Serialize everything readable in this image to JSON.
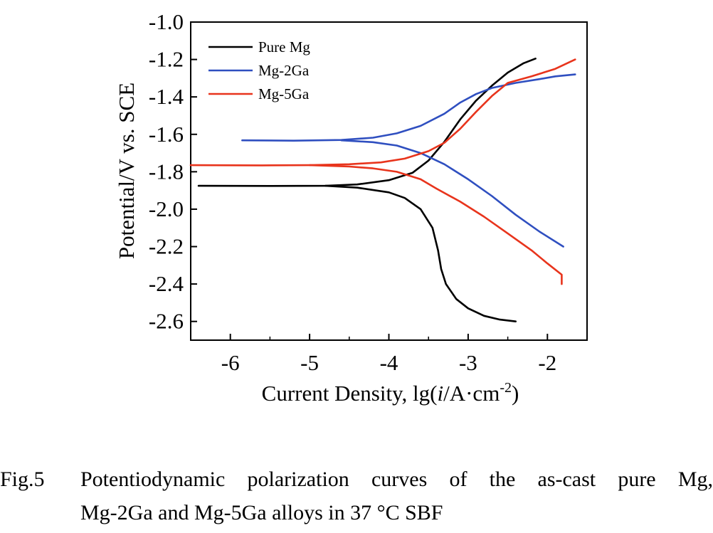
{
  "chart_data": {
    "type": "line",
    "xlabel": "Current Density, lg(i/A·cm-2)",
    "xlabel_parts": {
      "prefix": "Current Density, lg(",
      "italic": "i",
      "unit": "/A·cm",
      "sup": "-2",
      "suffix": ")"
    },
    "ylabel": "Potential/V vs. SCE",
    "xlim": [
      -6.5,
      -1.5
    ],
    "ylim": [
      -2.7,
      -1.0
    ],
    "xticks": [
      -6,
      -5,
      -4,
      -3,
      -2
    ],
    "xtick_labels": [
      "-6",
      "-5",
      "-4",
      "-3",
      "-2"
    ],
    "yticks": [
      -2.6,
      -2.4,
      -2.2,
      -2.0,
      -1.8,
      -1.6,
      -1.4,
      -1.2,
      -1.0
    ],
    "ytick_labels": [
      "-2.6",
      "-2.4",
      "-2.2",
      "-2.0",
      "-1.8",
      "-1.6",
      "-1.4",
      "-1.2",
      "-1.0"
    ],
    "grid": false,
    "legend_position": "top-left",
    "series": [
      {
        "name": "Pure Mg",
        "color": "#000000",
        "anodic": [
          [
            -6.4,
            -1.875
          ],
          [
            -5.5,
            -1.876
          ],
          [
            -4.8,
            -1.875
          ],
          [
            -4.4,
            -1.868
          ],
          [
            -4.0,
            -1.845
          ],
          [
            -3.7,
            -1.805
          ],
          [
            -3.5,
            -1.74
          ],
          [
            -3.3,
            -1.64
          ],
          [
            -3.1,
            -1.52
          ],
          [
            -2.9,
            -1.42
          ],
          [
            -2.7,
            -1.34
          ],
          [
            -2.5,
            -1.27
          ],
          [
            -2.3,
            -1.22
          ],
          [
            -2.15,
            -1.195
          ]
        ],
        "cathodic": [
          [
            -4.8,
            -1.875
          ],
          [
            -4.4,
            -1.885
          ],
          [
            -4.0,
            -1.91
          ],
          [
            -3.8,
            -1.94
          ],
          [
            -3.6,
            -2.0
          ],
          [
            -3.45,
            -2.1
          ],
          [
            -3.38,
            -2.22
          ],
          [
            -3.34,
            -2.32
          ],
          [
            -3.28,
            -2.4
          ],
          [
            -3.15,
            -2.48
          ],
          [
            -3.0,
            -2.53
          ],
          [
            -2.8,
            -2.57
          ],
          [
            -2.6,
            -2.59
          ],
          [
            -2.4,
            -2.6
          ]
        ]
      },
      {
        "name": "Mg-2Ga",
        "color": "#2f4fc0",
        "anodic": [
          [
            -5.85,
            -1.632
          ],
          [
            -5.2,
            -1.634
          ],
          [
            -4.6,
            -1.63
          ],
          [
            -4.2,
            -1.618
          ],
          [
            -3.9,
            -1.595
          ],
          [
            -3.6,
            -1.555
          ],
          [
            -3.3,
            -1.49
          ],
          [
            -3.1,
            -1.43
          ],
          [
            -2.9,
            -1.385
          ],
          [
            -2.7,
            -1.352
          ],
          [
            -2.4,
            -1.325
          ],
          [
            -2.1,
            -1.305
          ],
          [
            -1.9,
            -1.29
          ],
          [
            -1.65,
            -1.28
          ]
        ],
        "cathodic": [
          [
            -4.6,
            -1.632
          ],
          [
            -4.2,
            -1.642
          ],
          [
            -3.9,
            -1.66
          ],
          [
            -3.6,
            -1.7
          ],
          [
            -3.3,
            -1.76
          ],
          [
            -3.0,
            -1.84
          ],
          [
            -2.7,
            -1.93
          ],
          [
            -2.4,
            -2.03
          ],
          [
            -2.1,
            -2.12
          ],
          [
            -1.8,
            -2.2
          ]
        ]
      },
      {
        "name": "Mg-5Ga",
        "color": "#e8341c",
        "anodic": [
          [
            -6.5,
            -1.765
          ],
          [
            -5.6,
            -1.766
          ],
          [
            -5.0,
            -1.765
          ],
          [
            -4.5,
            -1.76
          ],
          [
            -4.1,
            -1.75
          ],
          [
            -3.8,
            -1.73
          ],
          [
            -3.5,
            -1.69
          ],
          [
            -3.3,
            -1.645
          ],
          [
            -3.1,
            -1.57
          ],
          [
            -2.9,
            -1.48
          ],
          [
            -2.7,
            -1.395
          ],
          [
            -2.5,
            -1.325
          ],
          [
            -2.2,
            -1.29
          ],
          [
            -1.9,
            -1.25
          ],
          [
            -1.65,
            -1.2
          ]
        ],
        "cathodic": [
          [
            -5.0,
            -1.765
          ],
          [
            -4.5,
            -1.772
          ],
          [
            -4.2,
            -1.782
          ],
          [
            -3.9,
            -1.8
          ],
          [
            -3.6,
            -1.84
          ],
          [
            -3.4,
            -1.89
          ],
          [
            -3.1,
            -1.96
          ],
          [
            -2.8,
            -2.04
          ],
          [
            -2.5,
            -2.13
          ],
          [
            -2.2,
            -2.22
          ],
          [
            -2.0,
            -2.29
          ],
          [
            -1.82,
            -2.35
          ],
          [
            -1.82,
            -2.4
          ]
        ]
      }
    ]
  },
  "caption": {
    "label": "Fig.5",
    "line1": "Potentiodynamic polarization curves of the as-cast pure Mg,",
    "line2": "Mg-2Ga and Mg-5Ga alloys in 37 °C SBF"
  }
}
